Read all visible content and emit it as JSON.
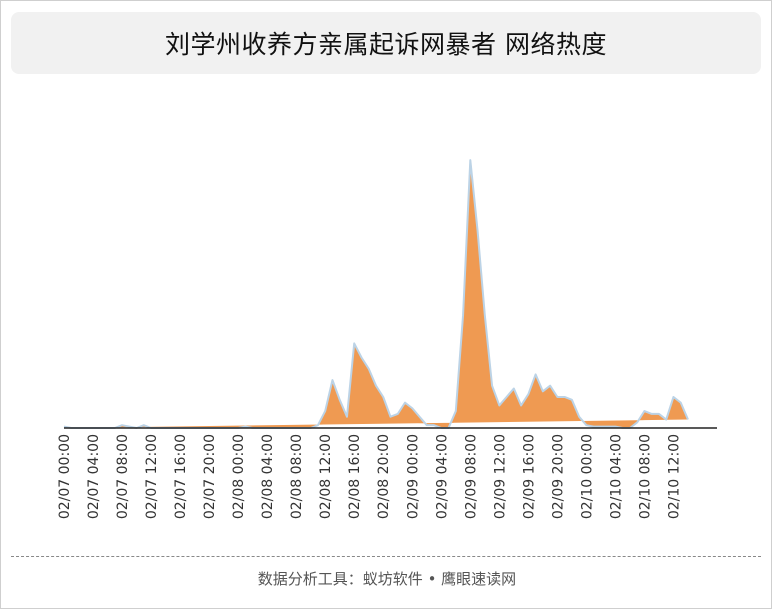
{
  "title": "刘学州收养方亲属起诉网暴者 网络热度",
  "footer": "数据分析工具：蚁坊软件 • 鹰眼速读网",
  "colors": {
    "area_fill": "#ef9a52",
    "area_stroke": "#bcd3e6",
    "axis": "#222222",
    "title_bg": "#f1f1f1"
  },
  "chart_data": {
    "type": "area",
    "title": "刘学州收养方亲属起诉网暴者 网络热度",
    "xlabel": "",
    "ylabel": "",
    "grid": false,
    "legend": "none",
    "tick_labels": [
      "02/07 00:00",
      "02/07 04:00",
      "02/07 08:00",
      "02/07 12:00",
      "02/07 16:00",
      "02/07 20:00",
      "02/08 00:00",
      "02/08 04:00",
      "02/08 08:00",
      "02/08 12:00",
      "02/08 16:00",
      "02/08 20:00",
      "02/09 00:00",
      "02/09 04:00",
      "02/09 08:00",
      "02/09 12:00",
      "02/09 16:00",
      "02/09 20:00",
      "02/10 00:00",
      "02/10 04:00",
      "02/10 08:00",
      "02/10 12:00"
    ],
    "x_hours_from_0207_0000": [
      0,
      1,
      2,
      3,
      4,
      5,
      6,
      7,
      8,
      9,
      10,
      11,
      12,
      13,
      14,
      15,
      16,
      17,
      18,
      19,
      20,
      21,
      22,
      23,
      24,
      25,
      26,
      27,
      28,
      29,
      30,
      31,
      32,
      33,
      34,
      35,
      36,
      37,
      38,
      39,
      40,
      41,
      42,
      43,
      44,
      45,
      46,
      47,
      48,
      49,
      50,
      51,
      52,
      53,
      54,
      55,
      56,
      57,
      58,
      59,
      60,
      61,
      62,
      63,
      64,
      65,
      66,
      67,
      68,
      69,
      70,
      71,
      72,
      73,
      74,
      75,
      76,
      77,
      78,
      79,
      80,
      81,
      82,
      83,
      84,
      85,
      86,
      87,
      88,
      89,
      90
    ],
    "values": [
      0.5,
      0,
      0,
      0,
      0,
      0,
      0,
      0,
      1,
      0.5,
      0,
      1,
      0,
      0,
      0,
      0,
      0,
      0,
      0,
      0,
      0,
      0,
      0,
      0,
      0,
      0.5,
      0,
      0,
      0,
      0,
      0,
      0,
      0,
      0,
      0,
      1,
      6,
      17,
      10,
      4,
      30,
      25,
      21,
      15,
      11,
      4,
      5,
      9,
      7,
      4,
      1,
      1,
      0,
      0,
      6,
      40,
      95,
      70,
      40,
      15,
      8,
      11,
      14,
      8,
      12,
      19,
      13,
      15,
      11,
      11,
      10,
      4,
      1,
      0.5,
      0.5,
      0.5,
      0.5,
      0,
      0,
      2,
      6,
      5,
      5,
      3,
      11,
      9,
      3
    ],
    "ylim": [
      0,
      100
    ]
  }
}
